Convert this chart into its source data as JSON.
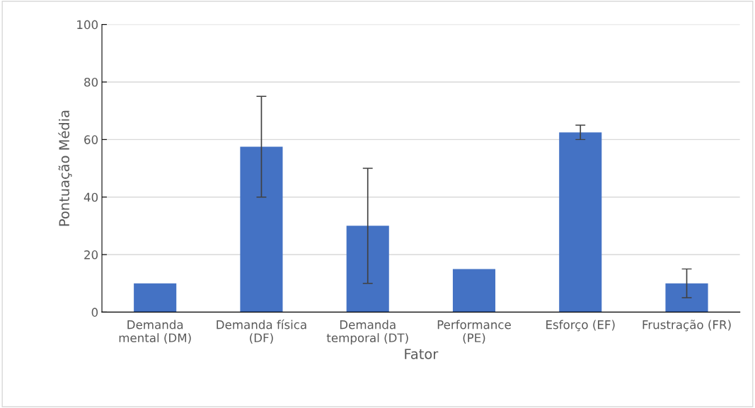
{
  "chart_data": {
    "type": "bar",
    "xlabel": "Fator",
    "ylabel": "Pontuação Média",
    "categories": [
      "Demanda\nmental (DM)",
      "Demanda física\n(DF)",
      "Demanda\ntemporal (DT)",
      "Performance\n(PE)",
      "Esforço (EF)",
      "Frustração (FR)"
    ],
    "values": [
      10,
      57.5,
      30,
      15,
      62.5,
      10
    ],
    "errors": [
      null,
      17.5,
      20,
      null,
      2.5,
      5
    ],
    "color": "#4472c4",
    "ylim": [
      0,
      100
    ],
    "yticks": [
      0,
      20,
      40,
      60,
      80,
      100
    ],
    "grid": "y"
  }
}
